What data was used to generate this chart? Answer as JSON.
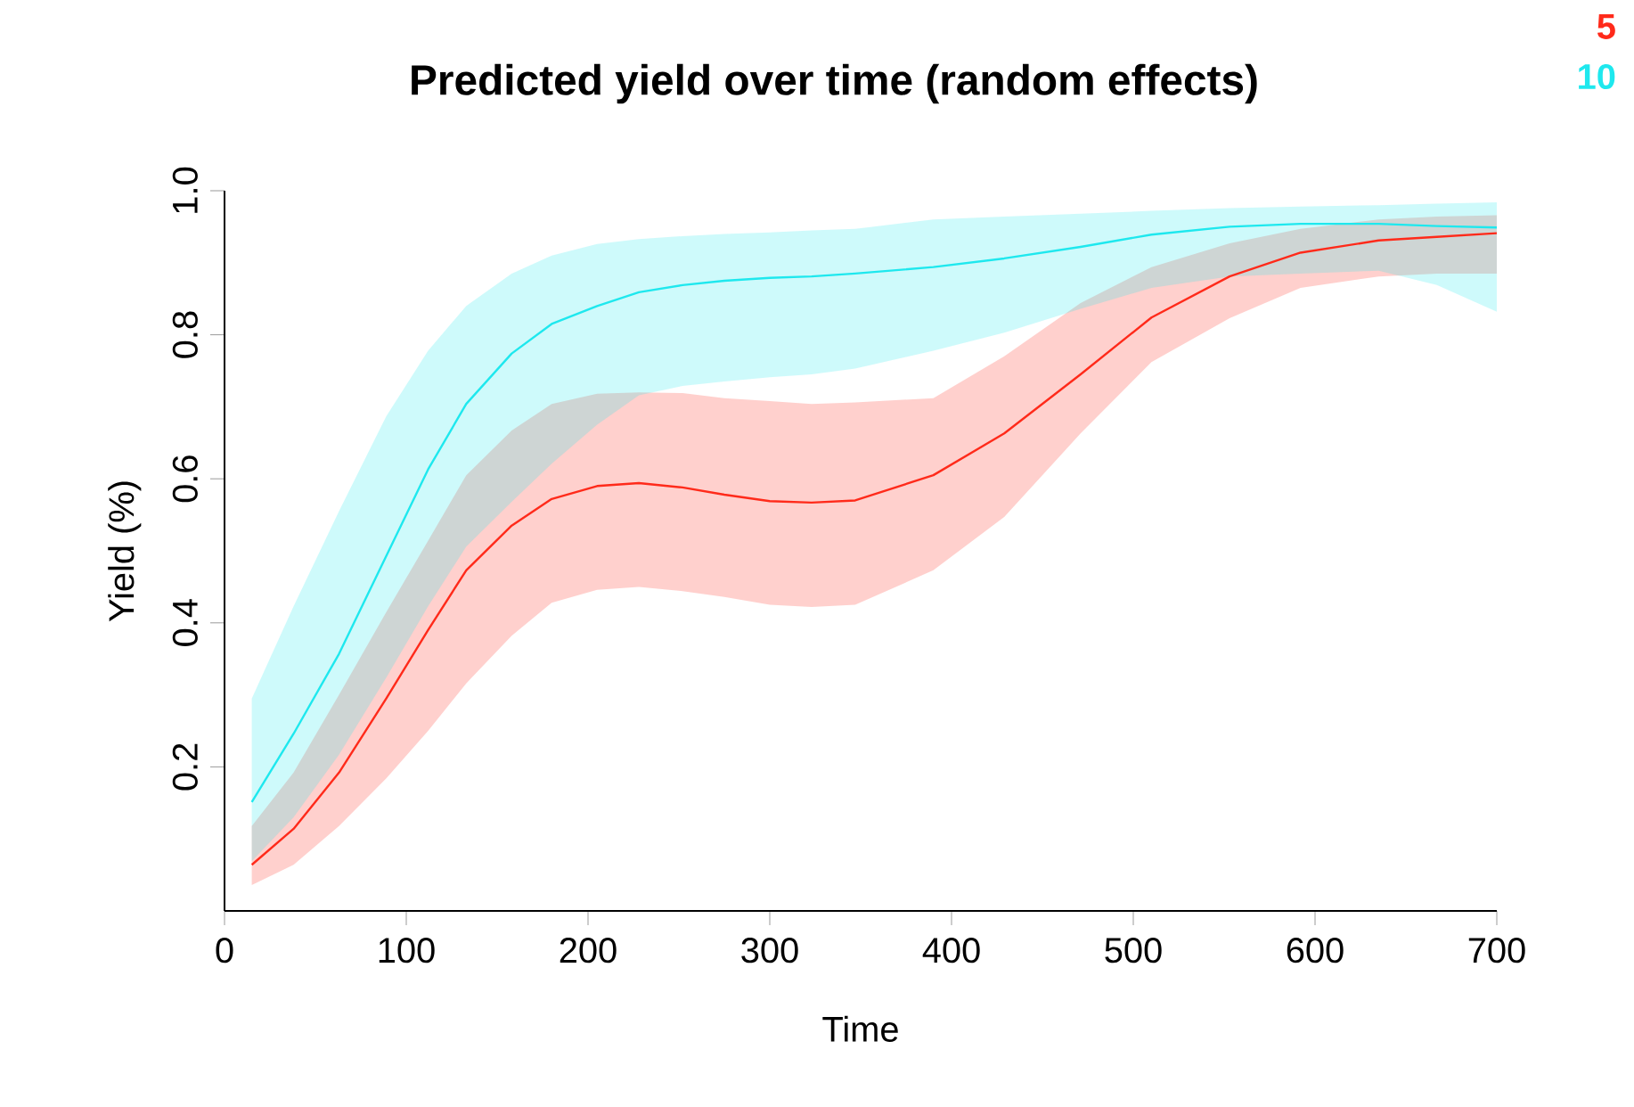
{
  "chart_data": {
    "type": "line",
    "title": "Predicted yield over time (random effects)",
    "xlabel": "Time",
    "ylabel": "Yield (%)",
    "x": [
      15,
      38,
      63,
      89,
      112,
      133,
      158,
      180,
      205,
      228,
      252,
      275,
      300,
      323,
      347,
      390,
      429,
      471,
      510,
      553,
      592,
      635,
      667,
      700
    ],
    "series": [
      {
        "name": "5",
        "color": "#ff2a1a",
        "values": [
          0.064,
          0.114,
          0.192,
          0.295,
          0.39,
          0.473,
          0.535,
          0.572,
          0.59,
          0.594,
          0.588,
          0.578,
          0.569,
          0.567,
          0.57,
          0.605,
          0.663,
          0.745,
          0.824,
          0.881,
          0.914,
          0.931,
          0.936,
          0.941
        ],
        "lower": [
          0.036,
          0.064,
          0.118,
          0.184,
          0.25,
          0.316,
          0.382,
          0.428,
          0.446,
          0.45,
          0.444,
          0.436,
          0.425,
          0.422,
          0.425,
          0.473,
          0.547,
          0.663,
          0.762,
          0.823,
          0.865,
          0.881,
          0.885,
          0.885
        ],
        "upper": [
          0.118,
          0.192,
          0.3,
          0.415,
          0.514,
          0.605,
          0.667,
          0.704,
          0.718,
          0.72,
          0.719,
          0.712,
          0.708,
          0.704,
          0.706,
          0.712,
          0.77,
          0.844,
          0.894,
          0.927,
          0.947,
          0.96,
          0.964,
          0.966
        ]
      },
      {
        "name": "10",
        "color": "#1ee8ee",
        "values": [
          0.151,
          0.246,
          0.357,
          0.493,
          0.613,
          0.704,
          0.774,
          0.815,
          0.84,
          0.859,
          0.869,
          0.875,
          0.879,
          0.881,
          0.885,
          0.894,
          0.906,
          0.922,
          0.939,
          0.95,
          0.954,
          0.954,
          0.951,
          0.949
        ],
        "lower": [
          0.069,
          0.13,
          0.217,
          0.324,
          0.423,
          0.506,
          0.568,
          0.621,
          0.675,
          0.716,
          0.729,
          0.735,
          0.741,
          0.745,
          0.753,
          0.778,
          0.803,
          0.836,
          0.865,
          0.881,
          0.885,
          0.889,
          0.869,
          0.832
        ],
        "upper": [
          0.295,
          0.423,
          0.555,
          0.687,
          0.778,
          0.84,
          0.885,
          0.91,
          0.926,
          0.933,
          0.937,
          0.94,
          0.942,
          0.945,
          0.947,
          0.96,
          0.964,
          0.968,
          0.972,
          0.976,
          0.978,
          0.98,
          0.982,
          0.984
        ]
      }
    ],
    "xlim": [
      0,
      700
    ],
    "ylim": [
      0,
      1.0
    ],
    "xticks": [
      0,
      100,
      200,
      300,
      400,
      500,
      600,
      700
    ],
    "yticks": [
      0.2,
      0.4,
      0.6,
      0.8,
      {
        "value": 1,
        "label": "1.0"
      }
    ],
    "legend": "top right",
    "line_style": "solid"
  }
}
